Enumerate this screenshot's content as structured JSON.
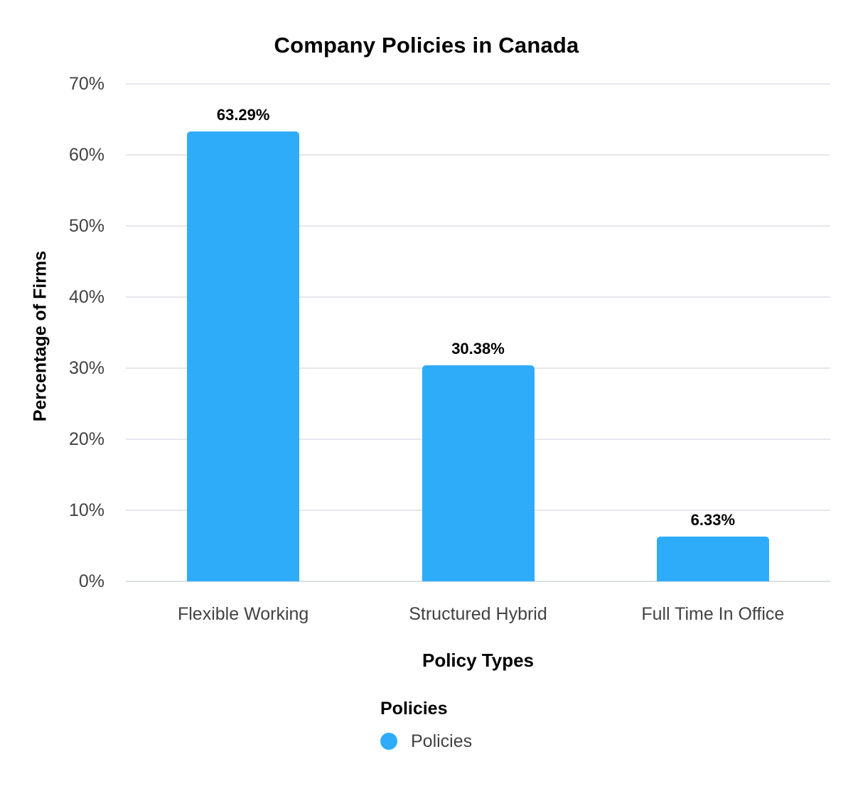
{
  "chart_data": {
    "type": "bar",
    "title": "Company Policies in Canada",
    "xlabel": "Policy Types",
    "ylabel": "Percentage of Firms",
    "categories": [
      "Flexible Working",
      "Structured Hybrid",
      "Full Time In Office"
    ],
    "series": [
      {
        "name": "Policies",
        "values": [
          63.29,
          30.38,
          6.33
        ]
      }
    ],
    "values": [
      63.29,
      30.38,
      6.33
    ],
    "value_labels": [
      "63.29%",
      "30.38%",
      "6.33%"
    ],
    "ylim": [
      0,
      70
    ],
    "ytick_step": 10,
    "ytick_suffix": "%",
    "ytick_labels": [
      "0%",
      "10%",
      "20%",
      "30%",
      "40%",
      "50%",
      "60%",
      "70%"
    ],
    "grid": true,
    "legend_position": "bottom",
    "legend_title": "Policies",
    "legend_entries": [
      "Policies"
    ],
    "colors": {
      "bar": "#2EACFA",
      "gridline": "#E5E7ED",
      "baseline": "#DDDFE5",
      "axis_text": "#424242",
      "emphasis_text": "#000000",
      "background": "#FFFFFF"
    }
  }
}
